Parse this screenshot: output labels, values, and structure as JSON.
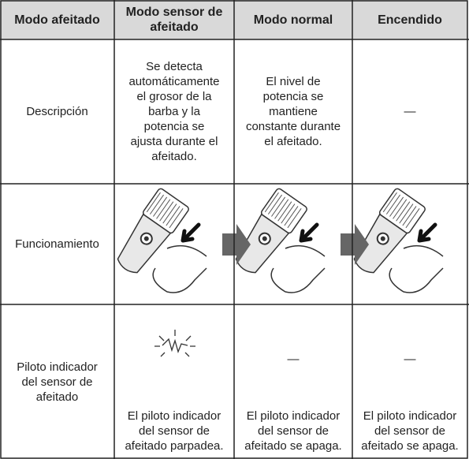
{
  "table": {
    "header": [
      [
        "Modo afeitado"
      ],
      [
        "Modo sensor de",
        "afeitado"
      ],
      [
        "Modo normal"
      ],
      [
        "Encendido"
      ]
    ],
    "rows": [
      {
        "label": [
          "Descripción"
        ],
        "cells": [
          [
            "Se detecta",
            "automáticamente",
            "el grosor de la",
            "barba y la",
            "potencia se",
            "ajusta durante el",
            "afeitado."
          ],
          [
            "El nivel de",
            "potencia se",
            "mantiene",
            "constante durante",
            "el afeitado."
          ],
          [
            "—"
          ]
        ]
      },
      {
        "label": [
          "Funcionamiento"
        ]
      },
      {
        "label": [
          "Piloto indicador",
          "del sensor de",
          "afeitado"
        ],
        "cells": [
          [
            "El piloto indicador",
            "del sensor de",
            "afeitado parpadea."
          ],
          [
            "—"
          ],
          [
            "El piloto indicador",
            "del sensor de",
            "afeitado se apaga."
          ],
          [
            "—"
          ],
          [
            "El piloto indicador",
            "del sensor de",
            "afeitado se apaga."
          ]
        ]
      }
    ]
  }
}
